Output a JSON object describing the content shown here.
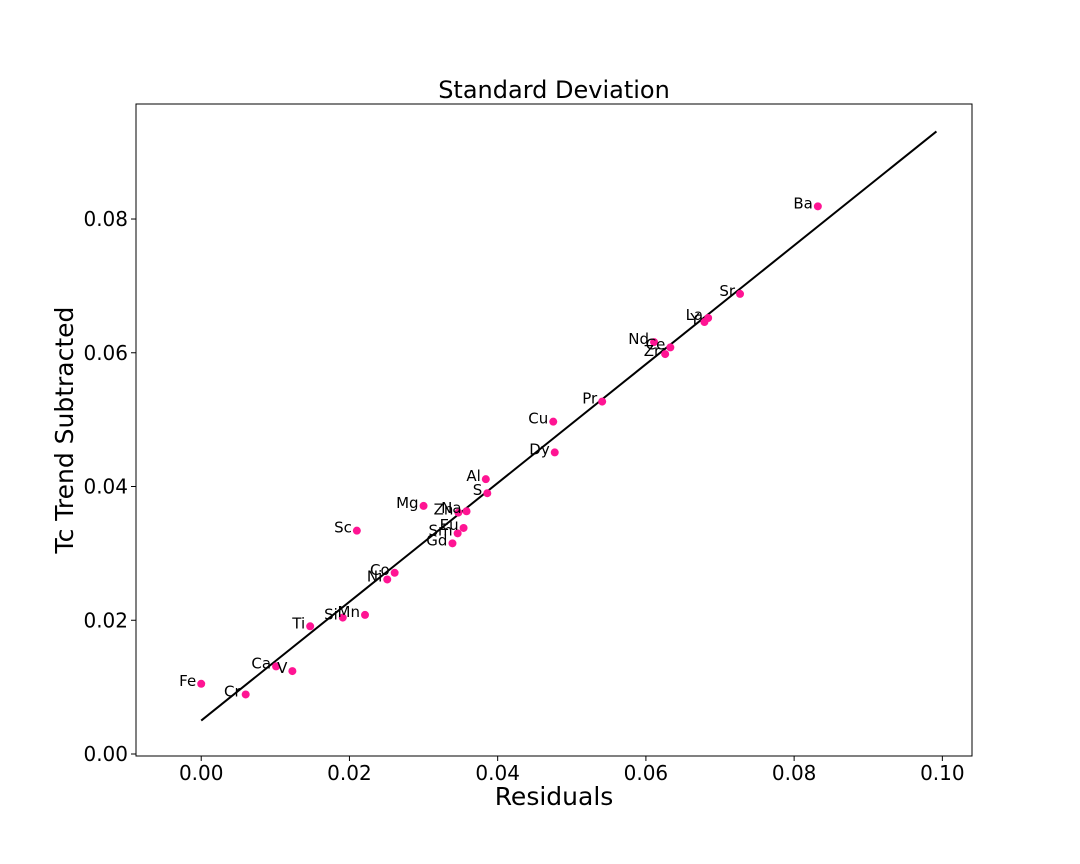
{
  "chart_data": {
    "type": "scatter",
    "title": "Standard Deviation",
    "xlabel": "Residuals",
    "ylabel": "Tc Trend Subtracted",
    "xlim": [
      -0.0088,
      0.104
    ],
    "ylim": [
      -0.0003,
      0.0972
    ],
    "xticks": [
      "0.00",
      "0.02",
      "0.04",
      "0.06",
      "0.08",
      "0.10"
    ],
    "yticks": [
      "0.00",
      "0.02",
      "0.04",
      "0.06",
      "0.08"
    ],
    "grid": false,
    "marker_color": "#ff1493",
    "line_color": "#000000",
    "fit_line": {
      "x": [
        0.0,
        0.0992
      ],
      "y": [
        0.005,
        0.0931
      ]
    },
    "points": [
      {
        "label": "Ba",
        "x": 0.0832,
        "y": 0.0819
      },
      {
        "label": "Sr",
        "x": 0.0727,
        "y": 0.0688
      },
      {
        "label": "La",
        "x": 0.0684,
        "y": 0.0652
      },
      {
        "label": "Y",
        "x": 0.0679,
        "y": 0.0646
      },
      {
        "label": "Nd",
        "x": 0.0611,
        "y": 0.0616
      },
      {
        "label": "Ce",
        "x": 0.0633,
        "y": 0.0608
      },
      {
        "label": "Zr",
        "x": 0.0626,
        "y": 0.0598
      },
      {
        "label": "Pr",
        "x": 0.0541,
        "y": 0.0527
      },
      {
        "label": "Cu",
        "x": 0.0475,
        "y": 0.0497
      },
      {
        "label": "Dy",
        "x": 0.0477,
        "y": 0.0451
      },
      {
        "label": "Al",
        "x": 0.0384,
        "y": 0.0411
      },
      {
        "label": "S",
        "x": 0.0386,
        "y": 0.039
      },
      {
        "label": "Mg",
        "x": 0.03,
        "y": 0.0371
      },
      {
        "label": "Na",
        "x": 0.0358,
        "y": 0.0363
      },
      {
        "label": "Zn",
        "x": 0.0347,
        "y": 0.0361
      },
      {
        "label": "Eu",
        "x": 0.0354,
        "y": 0.0338
      },
      {
        "label": "Sm",
        "x": 0.0346,
        "y": 0.033
      },
      {
        "label": "Gd",
        "x": 0.0339,
        "y": 0.0315
      },
      {
        "label": "Sc",
        "x": 0.021,
        "y": 0.0334
      },
      {
        "label": "Co",
        "x": 0.0261,
        "y": 0.0271
      },
      {
        "label": "Ni",
        "x": 0.0251,
        "y": 0.0261
      },
      {
        "label": "Mn",
        "x": 0.0221,
        "y": 0.0208
      },
      {
        "label": "Si",
        "x": 0.0191,
        "y": 0.0204
      },
      {
        "label": "Ti",
        "x": 0.0147,
        "y": 0.0191
      },
      {
        "label": "Ca",
        "x": 0.0101,
        "y": 0.0131
      },
      {
        "label": "V",
        "x": 0.0123,
        "y": 0.0124
      },
      {
        "label": "Fe",
        "x": 0.0,
        "y": 0.0105
      },
      {
        "label": "Cr",
        "x": 0.006,
        "y": 0.0089
      }
    ]
  }
}
